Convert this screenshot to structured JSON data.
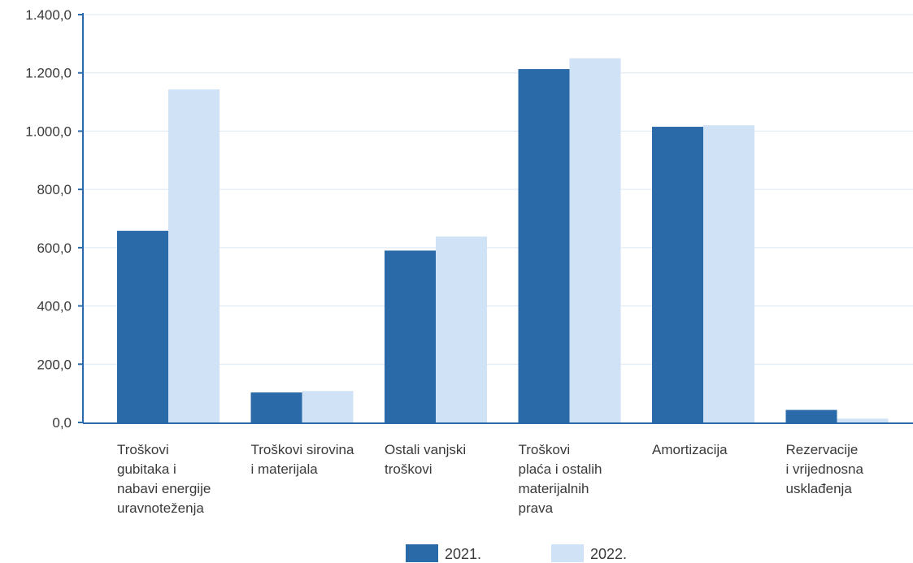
{
  "chart_data": {
    "type": "bar",
    "title": "",
    "xlabel": "",
    "ylabel": "",
    "ylim": [
      0,
      1400
    ],
    "yticks": [
      "0,0",
      "200,0",
      "400,0",
      "600,0",
      "800,0",
      "1.000,0",
      "1.200,0",
      "1.400,0"
    ],
    "ytick_values": [
      0,
      200,
      400,
      600,
      800,
      1000,
      1200,
      1400
    ],
    "grid": true,
    "legend_position": "bottom-center",
    "categories": [
      [
        "Troškovi",
        "gubitaka i",
        "nabavi energije",
        "uravnoteženja"
      ],
      [
        "Troškovi sirovina",
        "i materijala"
      ],
      [
        "Ostali vanjski",
        "troškovi"
      ],
      [
        "Troškovi",
        "plaća i ostalih",
        "materijalnih",
        "prava"
      ],
      [
        "Amortizacija"
      ],
      [
        "Rezervacije",
        "i vrijednosna",
        "usklađenja"
      ]
    ],
    "series": [
      {
        "name": "2021.",
        "color": "#2a6aa8",
        "values": [
          658,
          103,
          590,
          1213,
          1015,
          43
        ]
      },
      {
        "name": "2022.",
        "color": "#cfe2f6",
        "values": [
          1143,
          108,
          638,
          1250,
          1020,
          13
        ]
      }
    ],
    "axis_color": "#2a6aa8",
    "grid_color": "#dbe7f3"
  }
}
